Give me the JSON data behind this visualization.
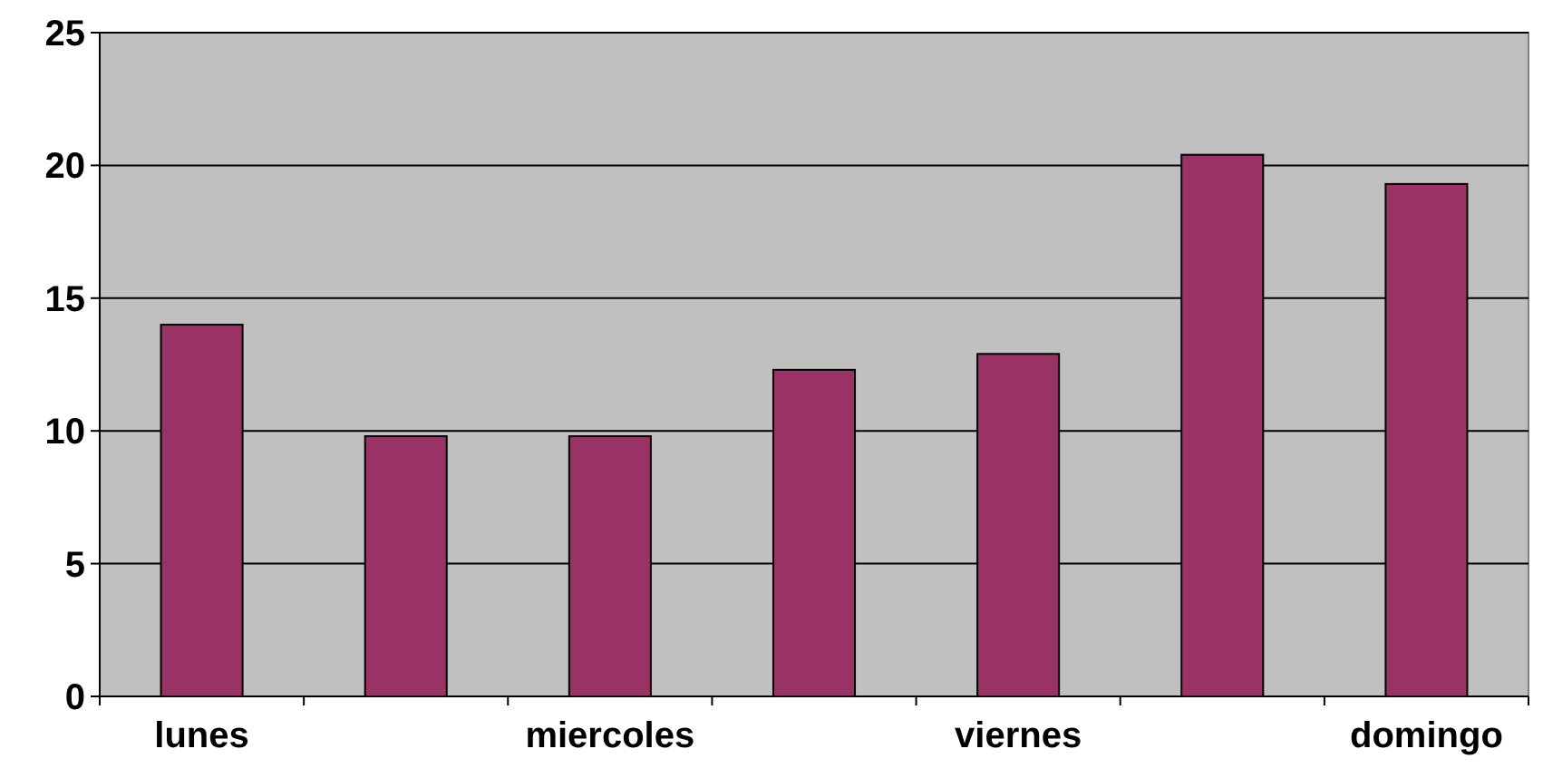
{
  "chart_data": {
    "type": "bar",
    "categories": [
      "lunes",
      null,
      "miercoles",
      null,
      "viernes",
      null,
      "domingo"
    ],
    "values": [
      14,
      9.8,
      9.8,
      12.3,
      12.9,
      20.4,
      19.3
    ],
    "color": "#993366",
    "ylim": [
      0,
      25
    ],
    "yticks": [
      0,
      5,
      10,
      15,
      20,
      25
    ],
    "grid": "y"
  }
}
